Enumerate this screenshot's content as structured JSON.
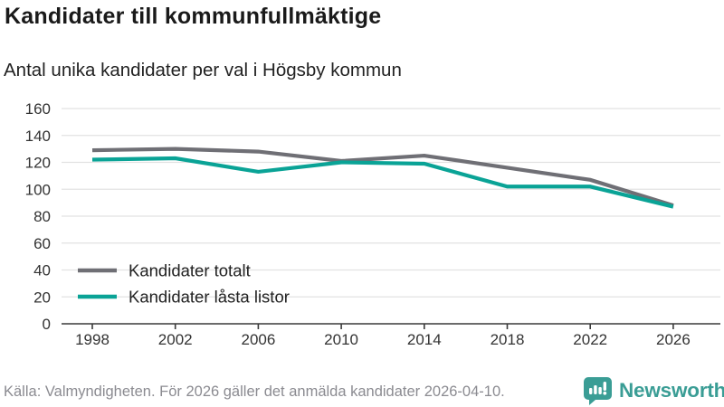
{
  "header": {
    "title": "Kandidater till kommunfullmäktige",
    "subtitle": "Antal unika kandidater per val i Högsby kommun"
  },
  "chart_data": {
    "type": "line",
    "title": "Kandidater till kommunfullmäktige",
    "subtitle": "Antal unika kandidater per val i Högsby kommun",
    "x": [
      1998,
      2002,
      2006,
      2010,
      2014,
      2018,
      2022,
      2026
    ],
    "series": [
      {
        "name": "Kandidater totalt",
        "color": "#6f6f75",
        "values": [
          129,
          130,
          128,
          121,
          125,
          116,
          107,
          88
        ]
      },
      {
        "name": "Kandidater låsta listor",
        "color": "#0aa396",
        "values": [
          122,
          123,
          113,
          120,
          119,
          102,
          102,
          87
        ]
      }
    ],
    "xlabel": "",
    "ylabel": "",
    "ylim": [
      0,
      160
    ],
    "yticks": [
      0,
      20,
      40,
      60,
      80,
      100,
      120,
      140,
      160
    ],
    "grid": true,
    "legend_position": "inside-bottom-left"
  },
  "footer": {
    "source": "Källa: Valmyndigheten. För 2026 gäller det anmälda kandidater 2026-04-10.",
    "logo_text": "Newsworthy"
  },
  "colors": {
    "series_total": "#6f6f75",
    "series_locked": "#0aa396",
    "grid": "#e2e2e2",
    "axis": "#3a3a3a",
    "tick_label": "#333333",
    "legend_label": "#222222",
    "title": "#1a1a1a",
    "subtitle": "#222222",
    "footer_text": "#8b8b91",
    "logo_teal": "#3a9d95"
  }
}
